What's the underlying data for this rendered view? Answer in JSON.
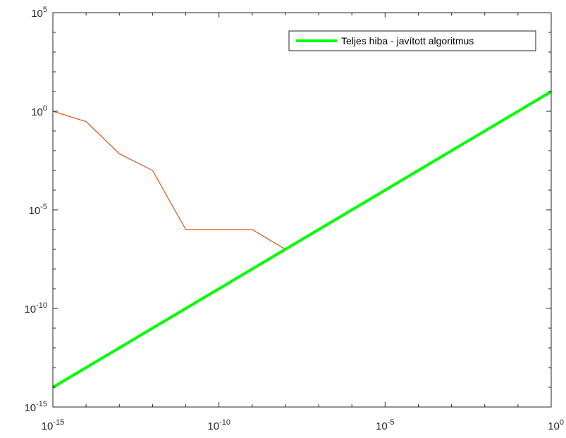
{
  "chart_data": {
    "type": "line",
    "title": "",
    "xlabel": "",
    "ylabel": "",
    "x_scale": "log",
    "y_scale": "log",
    "xlim": [
      1e-15,
      1
    ],
    "ylim": [
      1e-15,
      100000
    ],
    "grid": false,
    "legend_position": "top-right",
    "x_ticks": [
      {
        "base": "10",
        "exp": "-15",
        "value": 1e-15
      },
      {
        "base": "10",
        "exp": "-10",
        "value": 1e-10
      },
      {
        "base": "10",
        "exp": "-5",
        "value": 1e-05
      },
      {
        "base": "10",
        "exp": "0",
        "value": 1
      }
    ],
    "y_ticks": [
      {
        "base": "10",
        "exp": "-15",
        "value": 1e-15
      },
      {
        "base": "10",
        "exp": "-10",
        "value": 1e-10
      },
      {
        "base": "10",
        "exp": "-5",
        "value": 1e-05
      },
      {
        "base": "10",
        "exp": "0",
        "value": 1
      },
      {
        "base": "10",
        "exp": "5",
        "value": 100000
      }
    ],
    "series": [
      {
        "name": "",
        "color": "#D95319",
        "in_legend": false,
        "x": [
          1e-15,
          1e-14,
          1e-13,
          1e-12,
          1e-11,
          1e-10,
          1e-09,
          1e-08
        ],
        "y": [
          1.0,
          0.3,
          0.007,
          0.001,
          1e-06,
          1e-06,
          1e-06,
          1e-07
        ]
      },
      {
        "name": "Teljes hiba - javított algoritmus",
        "color": "#00FF00",
        "in_legend": true,
        "x": [
          1e-15,
          1
        ],
        "y": [
          1e-14,
          10
        ]
      }
    ]
  }
}
